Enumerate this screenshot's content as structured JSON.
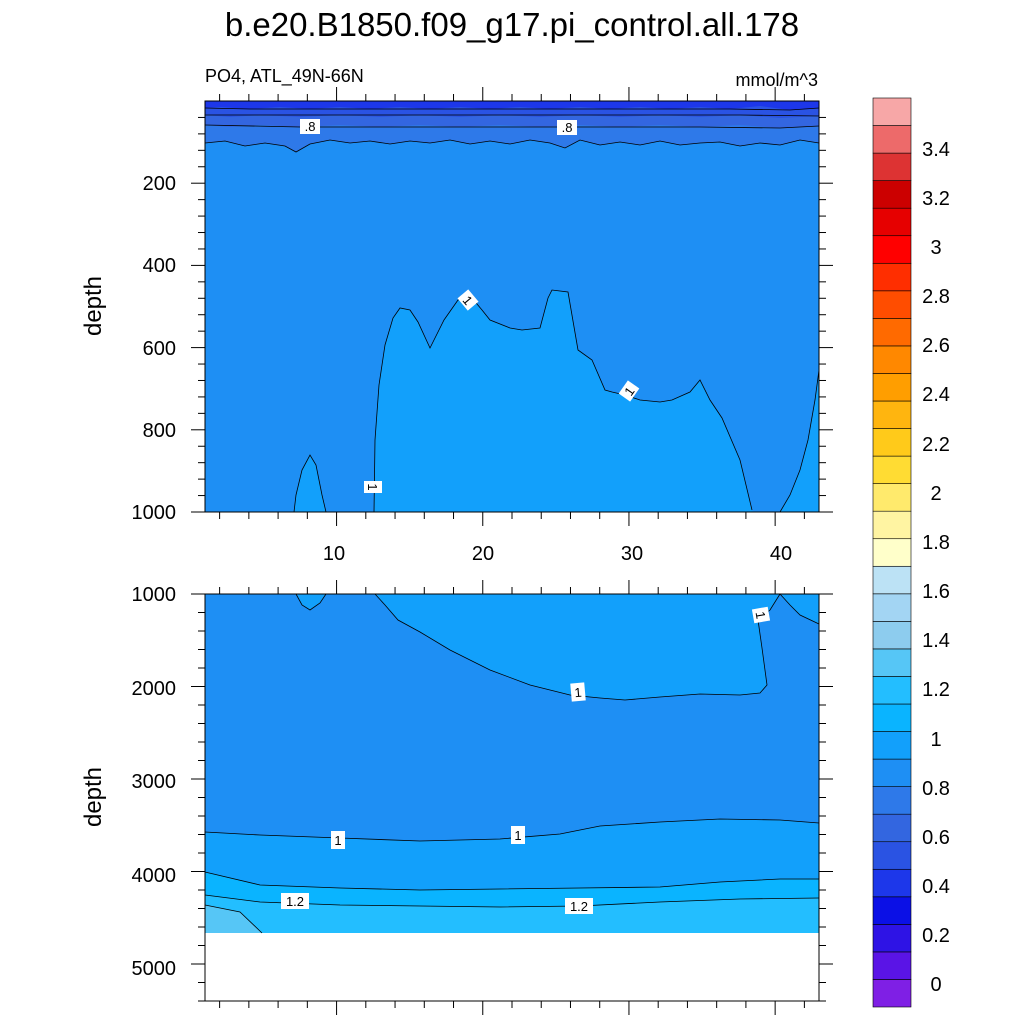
{
  "chart_data": {
    "type": "contour",
    "title": "b.e20.B1850.f09_g17.pi_control.all.178",
    "variable": "PO4, ATL_49N-66N",
    "units": "mmol/m^3",
    "colorbar": {
      "labels": [
        "0",
        "0.2",
        "0.4",
        "0.6",
        "0.8",
        "1",
        "1.2",
        "1.4",
        "1.6",
        "1.8",
        "2",
        "2.2",
        "2.4",
        "2.6",
        "2.8",
        "3",
        "3.2",
        "3.4"
      ],
      "colors": [
        "#7F1FE5",
        "#5A14E6",
        "#2E13E5",
        "#0B10E6",
        "#1D37EA",
        "#2A53E3",
        "#3366E0",
        "#2E79E9",
        "#1E8FF4",
        "#12A0FB",
        "#0AB4FF",
        "#23BEFF",
        "#56C6F6",
        "#8DCCEE",
        "#A3D5F3",
        "#BCE2F5",
        "#FFFFCA",
        "#FFF4A2",
        "#FFEA6C",
        "#FFDC33",
        "#FFCA1A",
        "#FFB50F",
        "#FF9E00",
        "#FF8800",
        "#FF6A00",
        "#FF4D00",
        "#FF2E00",
        "#FF0000",
        "#E60000",
        "#CC0000",
        "#DD3333",
        "#ED6A6A",
        "#F7A7A7"
      ]
    },
    "panels": [
      {
        "name": "upper",
        "ylabel": "depth",
        "ylim": [
          1000,
          0
        ],
        "yticks": [
          "200",
          "400",
          "600",
          "800",
          "1000"
        ],
        "xlim": [
          1,
          43
        ],
        "xticks": [
          "10",
          "20",
          "30",
          "40"
        ],
        "contour_labels": [
          ".8",
          ".8",
          "1",
          "1",
          "1"
        ]
      },
      {
        "name": "lower",
        "ylabel": "depth",
        "ylim": [
          5400,
          1000
        ],
        "yticks": [
          "1000",
          "2000",
          "3000",
          "4000",
          "5000"
        ],
        "contour_labels": [
          "1",
          "1",
          "1",
          "1",
          "1.2",
          "1.2"
        ]
      }
    ]
  }
}
